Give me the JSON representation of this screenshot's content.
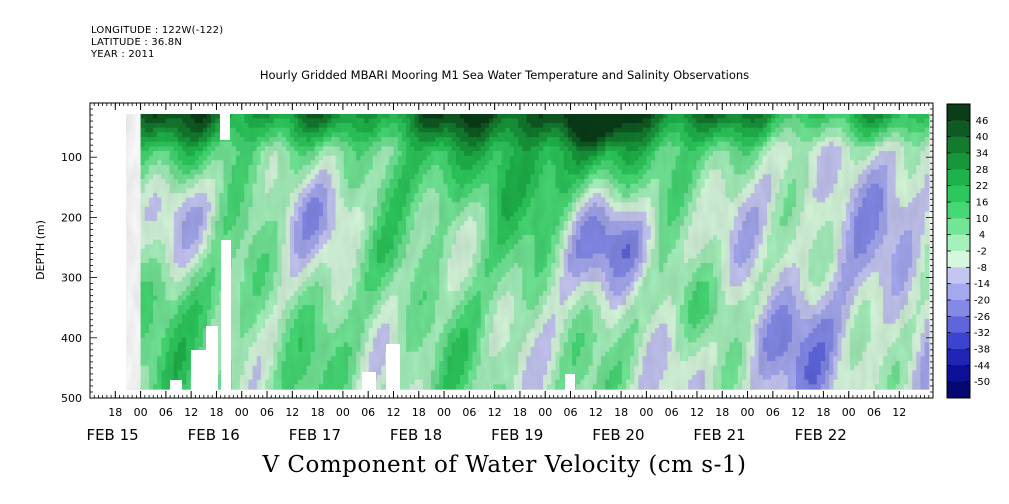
{
  "header": {
    "longitude": "LONGITUDE : 122W(-122)",
    "latitude": "LATITUDE : 36.8N",
    "year": "YEAR : 2011"
  },
  "chart_data": {
    "type": "heatmap",
    "title": "Hourly Gridded MBARI Mooring M1 Sea Water Temperature and Salinity Observations",
    "variable_label": "V Component of Water Velocity (cm s-1)",
    "ylabel": "DEPTH (m)",
    "y_inverted": true,
    "ylim": [
      500,
      10
    ],
    "y_ticks": [
      100,
      200,
      300,
      400,
      500
    ],
    "x_range_hours": [
      "2011-02-14T12:00",
      "2011-02-22T20:00"
    ],
    "data_range_hours": [
      "2011-02-15T00:00",
      "2011-02-22T19:00"
    ],
    "data_depth_range": [
      20,
      485
    ],
    "x_hour_ticks": [
      "18",
      "00",
      "06",
      "12",
      "18",
      "00",
      "06",
      "12",
      "18",
      "00",
      "06",
      "12",
      "18",
      "00",
      "06",
      "12",
      "18",
      "00",
      "06",
      "12",
      "18",
      "00",
      "06",
      "12",
      "18",
      "00",
      "06",
      "12",
      "18",
      "00",
      "06",
      "12"
    ],
    "x_date_labels": [
      "FEB 15",
      "FEB 16",
      "FEB 17",
      "FEB 18",
      "FEB 19",
      "FEB 20",
      "FEB 21",
      "FEB 22"
    ],
    "colorbar": {
      "levels": [
        "46",
        "40",
        "34",
        "28",
        "22",
        "16",
        "10",
        "4",
        "-2",
        "-8",
        "-14",
        "-20",
        "-26",
        "-32",
        "-38",
        "-44",
        "-50"
      ],
      "colors": [
        "#0a3d18",
        "#0f5a22",
        "#137a2e",
        "#18963a",
        "#1fb24a",
        "#2dc85c",
        "#46d874",
        "#72e696",
        "#a6f0bc",
        "#d6f7dc",
        "#c4c6f2",
        "#a4a8ee",
        "#8489e8",
        "#5f66dd",
        "#3c44cf",
        "#2026b4",
        "#0c1096",
        "#050870"
      ]
    },
    "grid": false,
    "sample_points": [
      {
        "time": "2011-02-15T12:00",
        "depth": 50,
        "v": 20
      },
      {
        "time": "2011-02-15T12:00",
        "depth": 200,
        "v": -6
      },
      {
        "time": "2011-02-15T12:00",
        "depth": 350,
        "v": 10
      },
      {
        "time": "2011-02-16T18:00",
        "depth": 200,
        "v": -10
      },
      {
        "time": "2011-02-17T12:00",
        "depth": 300,
        "v": 4
      },
      {
        "time": "2011-02-18T06:00",
        "depth": 50,
        "v": 22
      },
      {
        "time": "2011-02-18T18:00",
        "depth": 40,
        "v": 28
      },
      {
        "time": "2011-02-19T12:00",
        "depth": 30,
        "v": 40
      },
      {
        "time": "2011-02-19T18:00",
        "depth": 250,
        "v": -22
      },
      {
        "time": "2011-02-20T12:00",
        "depth": 350,
        "v": 10
      },
      {
        "time": "2011-02-21T06:00",
        "depth": 400,
        "v": -20
      },
      {
        "time": "2011-02-22T00:00",
        "depth": 200,
        "v": -12
      }
    ]
  }
}
